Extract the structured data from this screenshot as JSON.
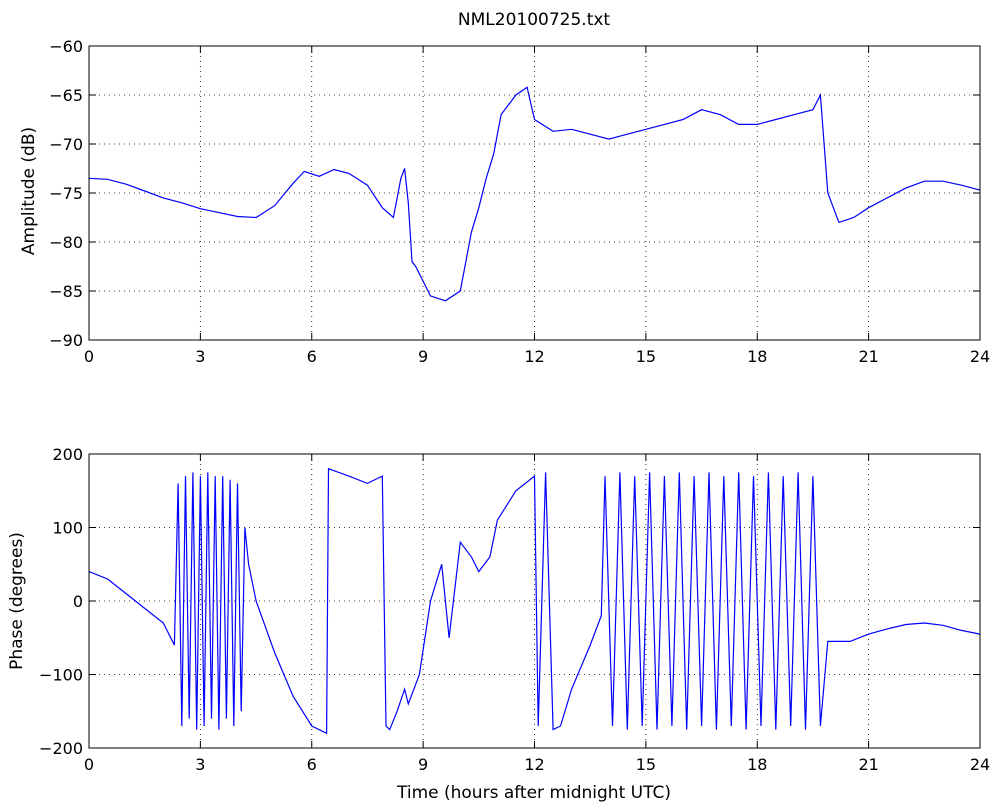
{
  "chart_data": [
    {
      "type": "line",
      "title": "NML20100725.txt",
      "xlabel": "",
      "ylabel": "Amplitude (dB)",
      "xlim": [
        0,
        24
      ],
      "ylim": [
        -90,
        -60
      ],
      "xticks": [
        0,
        3,
        6,
        9,
        12,
        15,
        18,
        21,
        24
      ],
      "yticks": [
        -90,
        -85,
        -80,
        -75,
        -70,
        -65,
        -60
      ],
      "grid": true,
      "line_color": "#0000ff",
      "series": [
        {
          "x": [
            0,
            0.5,
            1,
            1.5,
            2,
            2.5,
            3,
            3.5,
            4,
            4.5,
            5,
            5.5,
            5.8,
            6.2,
            6.6,
            7,
            7.5,
            7.9,
            8.2,
            8.4,
            8.5,
            8.6,
            8.7,
            8.8,
            9.2,
            9.6,
            10.0,
            10.3,
            10.5,
            10.7,
            10.9,
            11.1,
            11.5,
            11.8,
            12,
            12.5,
            13,
            13.5,
            14,
            14.5,
            15,
            15.5,
            16,
            16.5,
            17,
            17.5,
            18,
            18.5,
            19,
            19.5,
            19.7,
            19.9,
            20.2,
            20.6,
            21,
            21.5,
            22,
            22.5,
            23,
            23.5,
            24
          ],
          "y": [
            -73.5,
            -73.6,
            -74.1,
            -74.8,
            -75.5,
            -76,
            -76.6,
            -77,
            -77.4,
            -77.5,
            -76.3,
            -74,
            -72.8,
            -73.3,
            -72.6,
            -73,
            -74.2,
            -76.5,
            -77.5,
            -73.5,
            -72.5,
            -76,
            -82,
            -82.5,
            -85.5,
            -86,
            -85,
            -79,
            -76.5,
            -73.5,
            -71,
            -67,
            -65,
            -64.2,
            -67.5,
            -68.7,
            -68.5,
            -69,
            -69.5,
            -69,
            -68.5,
            -68,
            -67.5,
            -66.5,
            -67,
            -68,
            -68,
            -67.5,
            -67,
            -66.5,
            -65,
            -75,
            -78,
            -77.5,
            -76.5,
            -75.5,
            -74.5,
            -73.8,
            -73.8,
            -74.2,
            -74.7
          ]
        }
      ]
    },
    {
      "type": "line",
      "title": "",
      "xlabel": "Time (hours after midnight UTC)",
      "ylabel": "Phase (degrees)",
      "xlim": [
        0,
        24
      ],
      "ylim": [
        -200,
        200
      ],
      "xticks": [
        0,
        3,
        6,
        9,
        12,
        15,
        18,
        21,
        24
      ],
      "yticks": [
        -200,
        -100,
        0,
        100,
        200
      ],
      "grid": true,
      "line_color": "#0000ff",
      "series": [
        {
          "x": [
            0,
            0.5,
            1,
            1.5,
            2,
            2.3,
            2.4,
            2.5,
            2.6,
            2.7,
            2.8,
            2.9,
            3.0,
            3.1,
            3.2,
            3.3,
            3.4,
            3.5,
            3.6,
            3.7,
            3.8,
            3.9,
            4.0,
            4.1,
            4.2,
            4.3,
            4.5,
            5,
            5.5,
            6,
            6.4,
            6.45,
            7,
            7.5,
            7.9,
            8.0,
            8.1,
            8.3,
            8.5,
            8.6,
            8.9,
            9.2,
            9.5,
            9.7,
            10,
            10.3,
            10.5,
            10.8,
            11,
            11.5,
            12,
            12.1,
            12.3,
            12.5,
            12.7,
            13,
            13.5,
            13.8,
            13.9,
            14.1,
            14.3,
            14.5,
            14.7,
            14.9,
            15.1,
            15.3,
            15.5,
            15.7,
            15.9,
            16.1,
            16.3,
            16.5,
            16.7,
            16.9,
            17.1,
            17.3,
            17.5,
            17.7,
            17.9,
            18.1,
            18.3,
            18.5,
            18.7,
            18.9,
            19.1,
            19.3,
            19.5,
            19.7,
            19.9,
            20.5,
            21,
            21.5,
            22,
            22.5,
            23,
            23.5,
            24
          ],
          "y": [
            40,
            30,
            10,
            -10,
            -30,
            -60,
            160,
            -170,
            170,
            -160,
            175,
            -175,
            170,
            -170,
            175,
            -160,
            170,
            -175,
            170,
            -160,
            165,
            -170,
            160,
            -150,
            100,
            50,
            0,
            -70,
            -130,
            -170,
            -180,
            180,
            170,
            160,
            170,
            -170,
            -175,
            -150,
            -120,
            -140,
            -100,
            0,
            50,
            -50,
            80,
            60,
            40,
            60,
            110,
            150,
            170,
            -170,
            175,
            -175,
            -170,
            -120,
            -60,
            -20,
            170,
            -170,
            175,
            -175,
            170,
            -170,
            175,
            -175,
            170,
            -170,
            175,
            -175,
            170,
            -170,
            175,
            -175,
            170,
            -170,
            175,
            -175,
            170,
            -170,
            175,
            -175,
            170,
            -170,
            175,
            -175,
            170,
            -170,
            -55,
            -55,
            -45,
            -38,
            -32,
            -30,
            -33,
            -40,
            -45
          ]
        }
      ]
    }
  ]
}
